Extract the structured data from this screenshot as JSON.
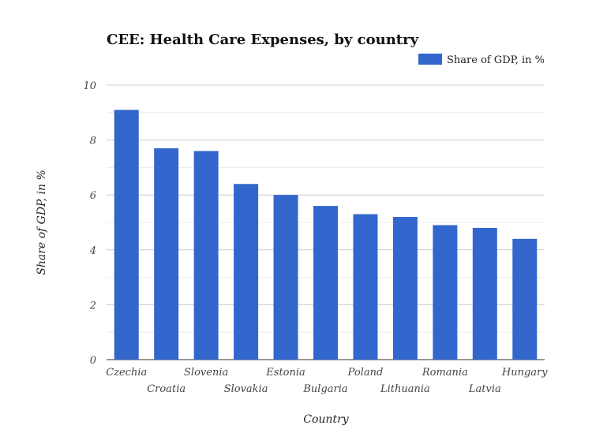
{
  "chart_data": {
    "type": "bar",
    "title": "CEE: Health Care Expenses, by country",
    "xlabel": "Country",
    "ylabel": "Share of GDP, in %",
    "ylim": [
      0,
      10
    ],
    "yticks": [
      0,
      2,
      4,
      6,
      8,
      10
    ],
    "grid": true,
    "legend_placement": "top-right",
    "categories": [
      "Czechia",
      "Croatia",
      "Slovenia",
      "Slovakia",
      "Estonia",
      "Bulgaria",
      "Poland",
      "Lithuania",
      "Romania",
      "Latvia",
      "Hungary"
    ],
    "series": [
      {
        "name": "Share of GDP, in %",
        "color": "#3366cc",
        "values": [
          9.1,
          7.7,
          7.6,
          6.4,
          6.0,
          5.6,
          5.3,
          5.2,
          4.9,
          4.8,
          4.4
        ]
      }
    ]
  }
}
